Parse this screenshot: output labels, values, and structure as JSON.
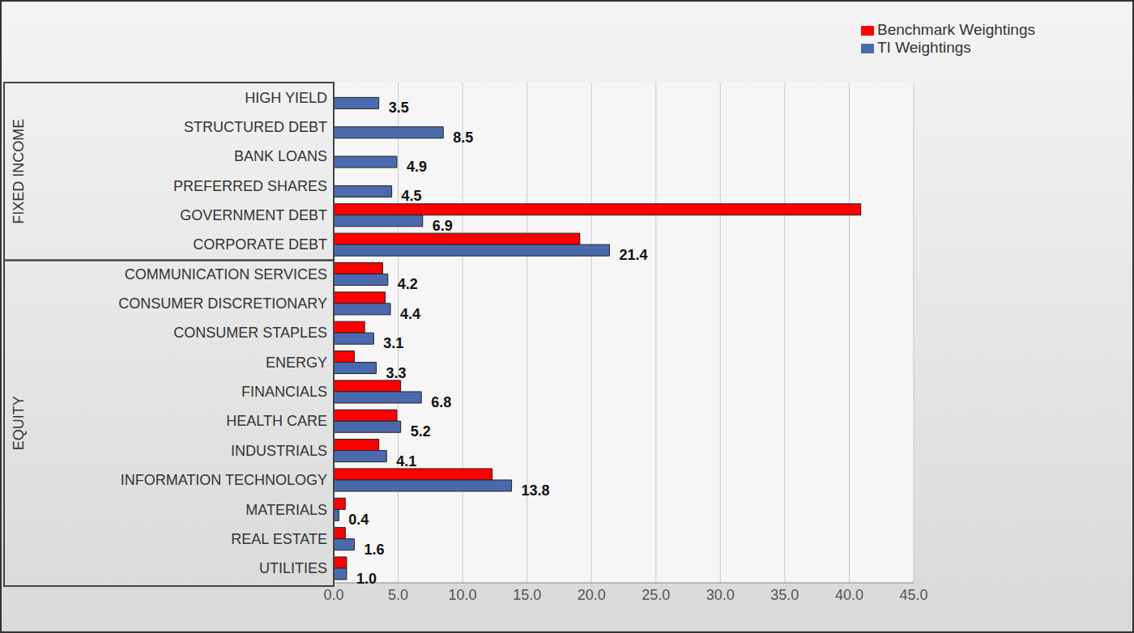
{
  "chart_data": {
    "type": "bar",
    "orientation": "horizontal",
    "categories": [
      "HIGH YIELD",
      "STRUCTURED DEBT",
      "BANK LOANS",
      "PREFERRED SHARES",
      "GOVERNMENT DEBT",
      "CORPORATE DEBT",
      "COMMUNICATION SERVICES",
      "CONSUMER DISCRETIONARY",
      "CONSUMER STAPLES",
      "ENERGY",
      "FINANCIALS",
      "HEALTH CARE",
      "INDUSTRIALS",
      "INFORMATION TECHNOLOGY",
      "MATERIALS",
      "REAL ESTATE",
      "UTILITIES"
    ],
    "groups": [
      {
        "name": "FIXED INCOME",
        "size": 6
      },
      {
        "name": "EQUITY",
        "size": 11
      }
    ],
    "series": [
      {
        "name": "Benchmark Weightings",
        "color": "#ff0000",
        "values": [
          0,
          0,
          0,
          0,
          40.9,
          19.1,
          3.8,
          4.0,
          2.4,
          1.6,
          5.2,
          4.9,
          3.5,
          12.3,
          0.9,
          0.9,
          1.0
        ]
      },
      {
        "name": "TI Weightings",
        "color": "#4a6aad",
        "data_labels": true,
        "values": [
          3.5,
          8.5,
          4.9,
          4.5,
          6.9,
          21.4,
          4.2,
          4.4,
          3.1,
          3.3,
          6.8,
          5.2,
          4.1,
          13.8,
          0.4,
          1.6,
          1.0
        ],
        "value_labels": [
          "3.5",
          "8.5",
          "4.9",
          "4.5",
          "6.9",
          "21.4",
          "4.2",
          "4.4",
          "3.1",
          "3.3",
          "6.8",
          "5.2",
          "4.1",
          "13.8",
          "0.4",
          "1.6",
          "1.0"
        ]
      }
    ],
    "xlim": [
      0,
      45
    ],
    "xticks": [
      {
        "value": 0,
        "label": "0.0"
      },
      {
        "value": 5,
        "label": "5.0"
      },
      {
        "value": 10,
        "label": "10.0"
      },
      {
        "value": 15,
        "label": "15.0"
      },
      {
        "value": 20,
        "label": "20.0"
      },
      {
        "value": 25,
        "label": "25.0"
      },
      {
        "value": 30,
        "label": "30.0"
      },
      {
        "value": 35,
        "label": "35.0"
      },
      {
        "value": 40,
        "label": "40.0"
      },
      {
        "value": 45,
        "label": "45.0"
      }
    ],
    "grid": true,
    "legend": "upper right"
  }
}
